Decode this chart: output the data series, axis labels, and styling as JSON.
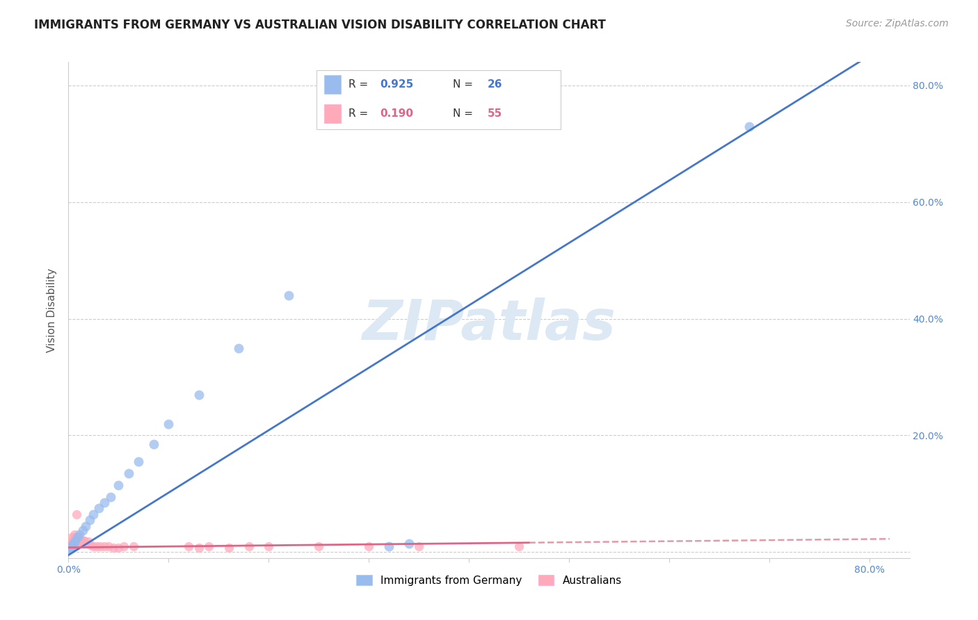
{
  "title": "IMMIGRANTS FROM GERMANY VS AUSTRALIAN VISION DISABILITY CORRELATION CHART",
  "source": "Source: ZipAtlas.com",
  "ylabel": "Vision Disability",
  "xlim": [
    0.0,
    0.84
  ],
  "ylim": [
    -0.01,
    0.84
  ],
  "blue_scatter_x": [
    0.001,
    0.002,
    0.003,
    0.004,
    0.005,
    0.007,
    0.009,
    0.011,
    0.014,
    0.017,
    0.021,
    0.025,
    0.03,
    0.036,
    0.042,
    0.05,
    0.06,
    0.07,
    0.085,
    0.1,
    0.13,
    0.17,
    0.22,
    0.32,
    0.34,
    0.68
  ],
  "blue_scatter_y": [
    0.005,
    0.008,
    0.01,
    0.012,
    0.015,
    0.02,
    0.025,
    0.03,
    0.038,
    0.045,
    0.055,
    0.065,
    0.075,
    0.085,
    0.095,
    0.115,
    0.135,
    0.155,
    0.185,
    0.22,
    0.27,
    0.35,
    0.44,
    0.01,
    0.015,
    0.73
  ],
  "pink_scatter_x": [
    0.0,
    0.001,
    0.001,
    0.001,
    0.002,
    0.002,
    0.002,
    0.003,
    0.003,
    0.003,
    0.003,
    0.004,
    0.004,
    0.004,
    0.005,
    0.005,
    0.005,
    0.006,
    0.006,
    0.006,
    0.007,
    0.007,
    0.008,
    0.008,
    0.009,
    0.01,
    0.01,
    0.011,
    0.012,
    0.013,
    0.014,
    0.015,
    0.016,
    0.018,
    0.02,
    0.022,
    0.025,
    0.028,
    0.032,
    0.036,
    0.04,
    0.045,
    0.05,
    0.055,
    0.065,
    0.12,
    0.13,
    0.14,
    0.16,
    0.18,
    0.2,
    0.25,
    0.3,
    0.35,
    0.45
  ],
  "pink_scatter_y": [
    0.01,
    0.005,
    0.008,
    0.01,
    0.008,
    0.01,
    0.015,
    0.01,
    0.012,
    0.015,
    0.025,
    0.01,
    0.015,
    0.02,
    0.01,
    0.02,
    0.025,
    0.015,
    0.02,
    0.03,
    0.015,
    0.025,
    0.02,
    0.065,
    0.02,
    0.018,
    0.025,
    0.02,
    0.015,
    0.02,
    0.015,
    0.02,
    0.02,
    0.015,
    0.018,
    0.012,
    0.01,
    0.01,
    0.01,
    0.01,
    0.01,
    0.008,
    0.008,
    0.01,
    0.01,
    0.01,
    0.008,
    0.01,
    0.008,
    0.01,
    0.01,
    0.01,
    0.01,
    0.01,
    0.01
  ],
  "blue_R": 0.925,
  "blue_N": 26,
  "pink_R": 0.19,
  "pink_N": 55,
  "blue_color": "#99bbee",
  "blue_line_color": "#4477cc",
  "pink_color": "#ffaabb",
  "pink_line_color": "#dd6688",
  "pink_dash_color": "#dd8899",
  "watermark": "ZIPatlas",
  "watermark_color": "#dde8f5",
  "grid_color": "#cccccc",
  "axis_color": "#cccccc",
  "tick_color": "#5588cc",
  "title_fontsize": 12,
  "source_fontsize": 10
}
